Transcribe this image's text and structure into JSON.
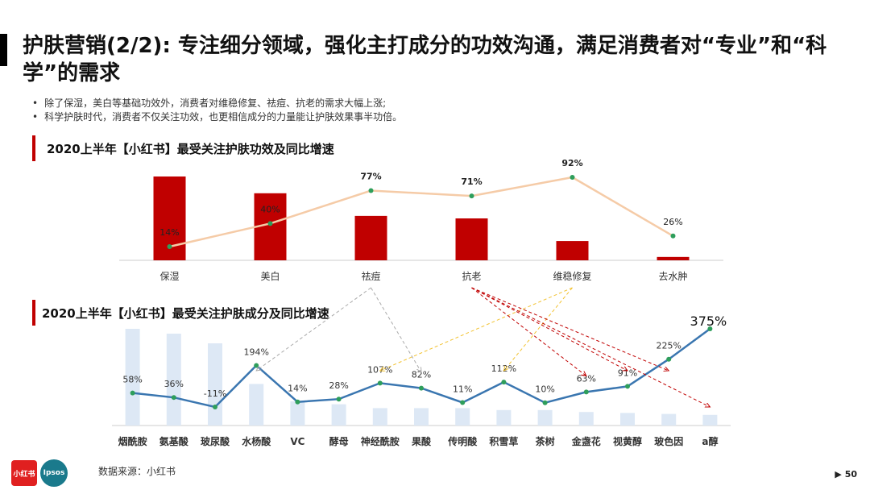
{
  "title": "护肤营销(2/2): 专注细分领域，强化主打成分的功效沟通，满足消费者对“专业”和“科学”的需求",
  "bullets": [
    "除了保湿，美白等基础功效外，消费者对维稳修复、祛痘、抗老的需求大幅上涨;",
    "科学护肤时代，消费者不仅关注功效，也更相信成分的力量能让护肤效果事半功倍。"
  ],
  "chart_data": [
    {
      "type": "bar+line",
      "title": "2020上半年【小红书】最受关注护肤功效及同比增速",
      "categories": [
        "保湿",
        "美白",
        "祛痘",
        "抗老",
        "维稳修复",
        "去水肿"
      ],
      "bar_values": [
        100,
        80,
        53,
        50,
        23,
        4
      ],
      "growth_values": [
        14,
        40,
        77,
        71,
        92,
        26
      ],
      "growth_labels": [
        "14%",
        "40%",
        "77%",
        "71%",
        "92%",
        "26%"
      ],
      "bar_color": "#c00000",
      "line_color": "#f5cba7",
      "marker_color": "#2e9e5b"
    },
    {
      "type": "bar+line",
      "title": "2020上半年【小红书】最受关注护肤成分及同比增速",
      "categories": [
        "烟酰胺",
        "氨基酸",
        "玻尿酸",
        "水杨酸",
        "VC",
        "酵母",
        "神经酰胺",
        "果酸",
        "传明酸",
        "积雪草",
        "茶树",
        "金盏花",
        "视黄醇",
        "玻色因",
        "a醇"
      ],
      "bar_values": [
        100,
        95,
        85,
        43,
        25,
        22,
        18,
        18,
        18,
        16,
        16,
        14,
        13,
        12,
        11
      ],
      "growth_values": [
        58,
        36,
        -11,
        194,
        14,
        28,
        107,
        82,
        11,
        112,
        10,
        63,
        91,
        225,
        375
      ],
      "growth_labels": [
        "58%",
        "36%",
        "-11%",
        "194%",
        "14%",
        "28%",
        "107%",
        "82%",
        "11%",
        "112%",
        "10%",
        "63%",
        "91%",
        "225%",
        "375%"
      ],
      "bar_color": "#dde8f5",
      "line_color": "#3a76b0",
      "marker_color": "#2e9e5b"
    }
  ],
  "arrow_links": [
    {
      "from_top": 2,
      "to_bottom": [
        3,
        7
      ],
      "color": "#aaaaaa"
    },
    {
      "from_top": 4,
      "to_bottom": [
        6,
        9
      ],
      "color": "#f2c230"
    },
    {
      "from_top": 3,
      "to_bottom": [
        11,
        12,
        13,
        14
      ],
      "color": "#c00000"
    }
  ],
  "footer": {
    "source": "数据来源：小红书",
    "page": "50",
    "logo1": "小红书",
    "logo2": "Ipsos"
  }
}
